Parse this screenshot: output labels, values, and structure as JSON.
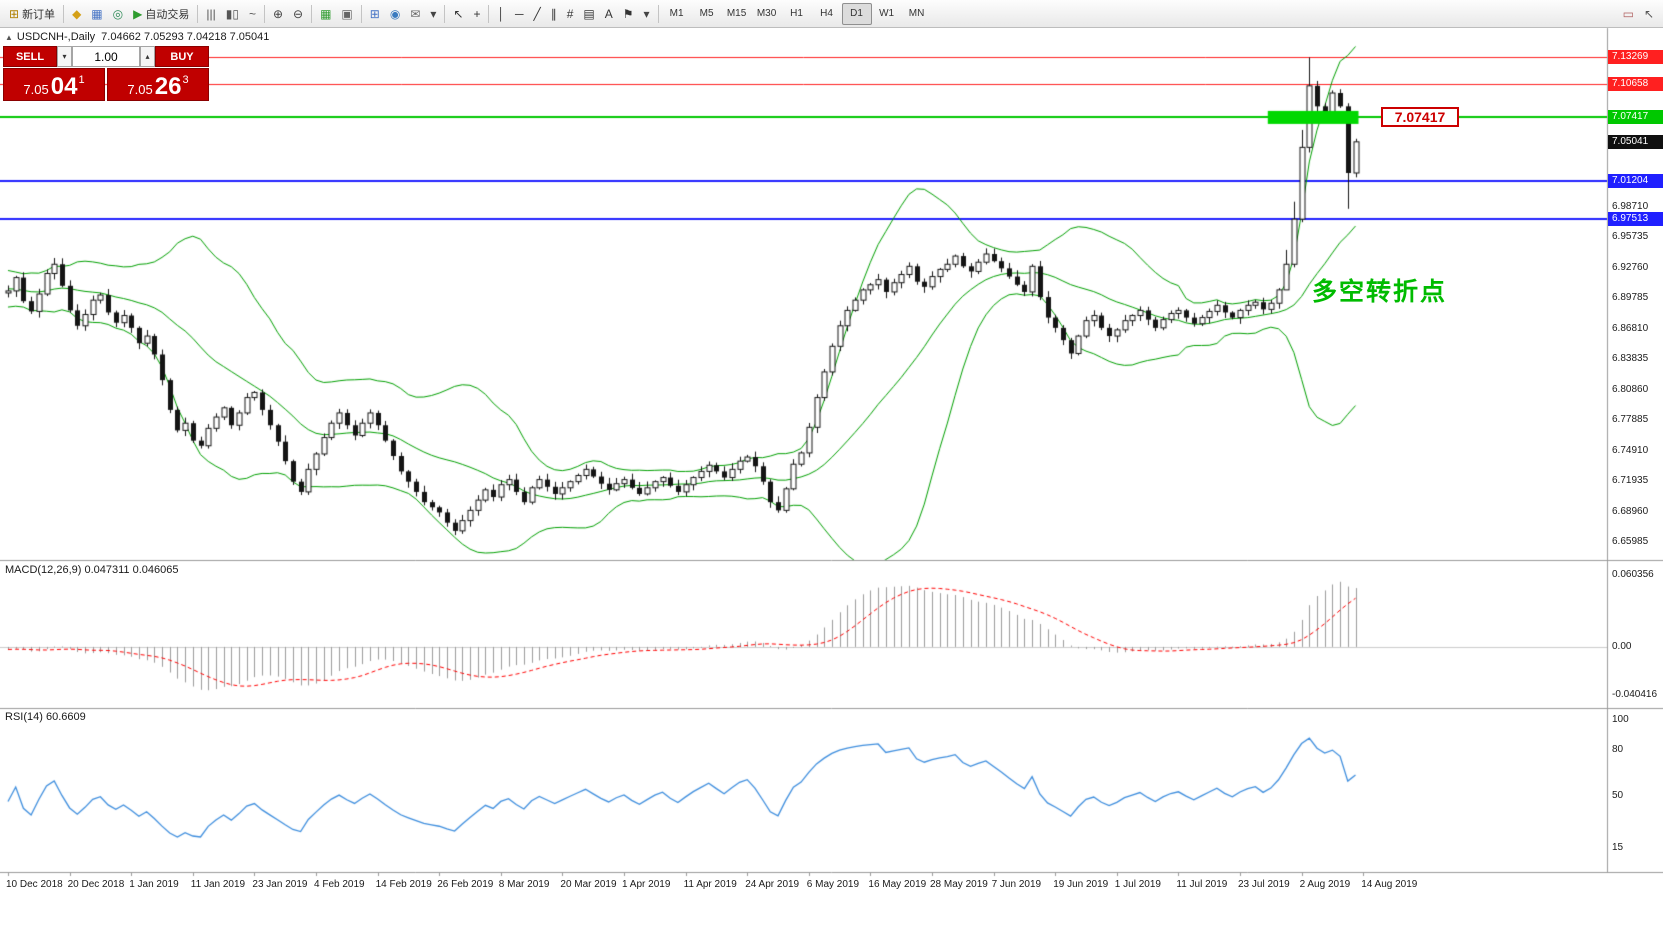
{
  "toolbar": {
    "groups": [
      {
        "items": [
          {
            "name": "new-order-button",
            "glyph": "⊞",
            "color": "#b08000",
            "label": "新订单"
          }
        ]
      },
      {
        "items": [
          {
            "name": "market-watch-button",
            "glyph": "◆",
            "color": "#d4a017"
          },
          {
            "name": "data-window-button",
            "glyph": "▦",
            "color": "#4472c4"
          },
          {
            "name": "navigator-button",
            "glyph": "◎",
            "color": "#2e8b57"
          },
          {
            "name": "autotrading-button",
            "glyph": "▶",
            "color": "#2e9b2e",
            "label": "自动交易"
          }
        ]
      },
      {
        "items": [
          {
            "name": "ohlc-bars-button",
            "glyph": "|||",
            "color": "#555555"
          },
          {
            "name": "candlestick-chart-button",
            "glyph": "▮▯",
            "color": "#555555"
          },
          {
            "name": "line-chart-button",
            "glyph": "~",
            "color": "#555555"
          }
        ]
      },
      {
        "items": [
          {
            "name": "zoom-in-button",
            "glyph": "⊕",
            "color": "#444444"
          },
          {
            "name": "zoom-out-button",
            "glyph": "⊖",
            "color": "#444444"
          }
        ]
      },
      {
        "items": [
          {
            "name": "tile-windows-button",
            "glyph": "▦",
            "color": "#2e9b2e"
          },
          {
            "name": "cascade-windows-button",
            "glyph": "▣",
            "color": "#666666"
          }
        ]
      },
      {
        "items": [
          {
            "name": "new-chart-button",
            "glyph": "⊞",
            "color": "#4472c4"
          },
          {
            "name": "profiles-button",
            "glyph": "◉",
            "color": "#3a7bbf"
          },
          {
            "name": "mail-button",
            "glyph": "✉",
            "color": "#666666"
          },
          {
            "name": "mail-dropdown-button",
            "glyph": "▾",
            "color": "#444444"
          }
        ]
      },
      {
        "items": [
          {
            "name": "cursor-button",
            "glyph": "↖",
            "color": "#333333"
          },
          {
            "name": "crosshair-button",
            "glyph": "+",
            "color": "#333333"
          }
        ]
      },
      {
        "items": [
          {
            "name": "vertical-line-button",
            "glyph": "│",
            "color": "#333333"
          },
          {
            "name": "horizontal-line-button",
            "glyph": "─",
            "color": "#333333"
          },
          {
            "name": "trendline-button",
            "glyph": "╱",
            "color": "#333333"
          },
          {
            "name": "channel-button",
            "glyph": "∥",
            "color": "#333333"
          },
          {
            "name": "fibonacci-button",
            "glyph": "#",
            "color": "#333333"
          },
          {
            "name": "shapes-button",
            "glyph": "▤",
            "color": "#333333"
          },
          {
            "name": "text-label-button",
            "glyph": "A",
            "color": "#333333"
          },
          {
            "name": "arrows-tool-button",
            "glyph": "⚑",
            "color": "#333333"
          },
          {
            "name": "arrows-dropdown-button",
            "glyph": "▾",
            "color": "#444444"
          }
        ]
      }
    ],
    "timeframes": [
      "M1",
      "M5",
      "M15",
      "M30",
      "H1",
      "H4",
      "D1",
      "W1",
      "MN"
    ],
    "active_timeframe": "D1",
    "right_items": [
      {
        "name": "eraser-button",
        "glyph": "▭",
        "color": "#b06060"
      },
      {
        "name": "pointer-button",
        "glyph": "↖",
        "color": "#555555"
      }
    ]
  },
  "chart": {
    "header": {
      "collapse_icon": "▲",
      "symbol_period": "USDCNH-,Daily",
      "ohlc": "7.04662 7.05293 7.04218 7.05041"
    }
  },
  "trade_panel": {
    "sell_label": "SELL",
    "buy_label": "BUY",
    "lot": "1.00",
    "dec_glyph": "▾",
    "inc_glyph": "▴",
    "bid": {
      "prefix": "7.05",
      "big": "04",
      "sup": "1"
    },
    "ask": {
      "prefix": "7.05",
      "big": "26",
      "sup": "3"
    }
  },
  "annotation": {
    "text": "多空转折点",
    "color": "#00bb00"
  },
  "callout": {
    "text": "7.07417"
  },
  "macd_label": "MACD(12,26,9) 0.047311 0.046065",
  "rsi_label": "RSI(14) 60.6609",
  "chart_data": {
    "type": "candlestick",
    "symbol": "USDCNH-",
    "timeframe": "Daily",
    "last_price": "7.05041",
    "ylim": [
      6.6465,
      7.1575
    ],
    "macd_ylim": [
      -0.048,
      0.068
    ],
    "rsi_ylim": [
      2,
      104
    ],
    "warmup_bars": 40,
    "visible_bars": 176,
    "candle_up_color": "#ffffff",
    "candle_down_color": "#141414",
    "candle_border_color": "#141414",
    "bollinger": {
      "period": 20,
      "deviation": 2,
      "color": "#00a000"
    },
    "macd": {
      "fast": 12,
      "slow": 26,
      "signal": 9,
      "value": "0.047311",
      "signal_value": "0.046065",
      "histogram_color": "#9b9b9b",
      "signal_color": "#ff0000"
    },
    "rsi": {
      "period": 14,
      "value": "60.6609",
      "color": "#3e8ede"
    },
    "levels": [
      {
        "price": "7.13269",
        "color": "#ff2020",
        "width": 1
      },
      {
        "price": "7.10658",
        "color": "#ff2020",
        "width": 1
      },
      {
        "price": "7.07417",
        "color": "#00c800",
        "width": 2
      },
      {
        "price": "7.01204",
        "color": "#2020ff",
        "width": 2
      },
      {
        "price": "6.97513",
        "color": "#2020ff",
        "width": 2
      }
    ],
    "green_zone": {
      "from_bar": 164,
      "to_bar": 175,
      "price": 7.0742,
      "thickness": 13,
      "color": "#00d800"
    },
    "price_ticks": [
      "6.98710",
      "6.95735",
      "6.92760",
      "6.89785",
      "6.86810",
      "6.83835",
      "6.80860",
      "6.77885",
      "6.74910",
      "6.71935",
      "6.68960",
      "6.65985"
    ],
    "macd_ticks": [
      "0.060356",
      "0.00",
      "-0.040416"
    ],
    "rsi_ticks": [
      "100",
      "80",
      "50",
      "15"
    ],
    "date_ticks": [
      "10 Dec 2018",
      "20 Dec 2018",
      "1 Jan 2019",
      "11 Jan 2019",
      "23 Jan 2019",
      "4 Feb 2019",
      "14 Feb 2019",
      "26 Feb 2019",
      "8 Mar 2019",
      "20 Mar 2019",
      "1 Apr 2019",
      "11 Apr 2019",
      "24 Apr 2019",
      "6 May 2019",
      "16 May 2019",
      "28 May 2019",
      "7 Jun 2019",
      "19 Jun 2019",
      "1 Jul 2019",
      "11 Jul 2019",
      "23 Jul 2019",
      "2 Aug 2019",
      "14 Aug 2019"
    ],
    "closes": [
      6.93,
      6.925,
      6.92,
      6.915,
      6.92,
      6.925,
      6.93,
      6.935,
      6.93,
      6.925,
      6.92,
      6.915,
      6.91,
      6.905,
      6.9,
      6.895,
      6.9,
      6.905,
      6.91,
      6.915,
      6.92,
      6.925,
      6.92,
      6.911,
      6.906,
      6.901,
      6.896,
      6.891,
      6.896,
      6.901,
      6.906,
      6.911,
      6.916,
      6.921,
      6.916,
      6.911,
      6.906,
      6.901,
      6.899,
      6.903,
      6.905,
      6.918,
      6.895,
      6.885,
      6.902,
      6.922,
      6.931,
      6.91,
      6.886,
      6.871,
      6.882,
      6.896,
      6.901,
      6.884,
      6.874,
      6.881,
      6.869,
      6.854,
      6.861,
      6.843,
      6.818,
      6.789,
      6.769,
      6.776,
      6.759,
      6.754,
      6.771,
      6.782,
      6.791,
      6.774,
      6.786,
      6.801,
      6.806,
      6.789,
      6.774,
      6.758,
      6.739,
      6.719,
      6.709,
      6.731,
      6.746,
      6.762,
      6.776,
      6.786,
      6.774,
      6.764,
      6.776,
      6.786,
      6.774,
      6.759,
      6.744,
      6.729,
      6.719,
      6.709,
      6.699,
      6.694,
      6.689,
      6.679,
      6.671,
      6.681,
      6.691,
      6.701,
      6.711,
      6.704,
      6.716,
      6.721,
      6.709,
      6.699,
      6.713,
      6.721,
      6.714,
      6.707,
      6.713,
      6.719,
      6.725,
      6.731,
      6.724,
      6.717,
      6.711,
      6.717,
      6.721,
      6.713,
      6.707,
      6.713,
      6.719,
      6.723,
      6.715,
      6.709,
      6.716,
      6.723,
      6.729,
      6.735,
      6.729,
      6.723,
      6.731,
      6.739,
      6.743,
      6.734,
      6.719,
      6.699,
      6.691,
      6.712,
      6.736,
      6.747,
      6.772,
      6.801,
      6.826,
      6.851,
      6.871,
      6.886,
      6.896,
      6.906,
      6.911,
      6.916,
      6.904,
      6.913,
      6.921,
      6.929,
      6.914,
      6.909,
      6.919,
      6.926,
      6.931,
      6.939,
      6.929,
      6.924,
      6.933,
      6.941,
      6.934,
      6.927,
      6.919,
      6.911,
      6.904,
      6.929,
      6.899,
      6.879,
      6.869,
      6.857,
      6.844,
      6.861,
      6.876,
      6.881,
      6.869,
      6.861,
      6.867,
      6.876,
      6.881,
      6.886,
      6.877,
      6.869,
      6.877,
      6.883,
      6.886,
      6.879,
      6.873,
      6.879,
      6.885,
      6.891,
      6.884,
      6.879,
      6.886,
      6.891,
      6.894,
      6.887,
      6.893,
      6.906,
      6.931,
      6.975,
      7.045,
      7.105,
      7.085,
      7.075,
      7.098,
      7.085,
      7.02,
      7.0504
    ],
    "wick_overrides": {
      "166": [
        6.945,
        6.915
      ],
      "167": [
        6.992,
        6.928
      ],
      "168": [
        7.062,
        6.972
      ],
      "169": [
        7.1327,
        7.04
      ],
      "174": [
        7.088,
        6.9851
      ]
    }
  }
}
